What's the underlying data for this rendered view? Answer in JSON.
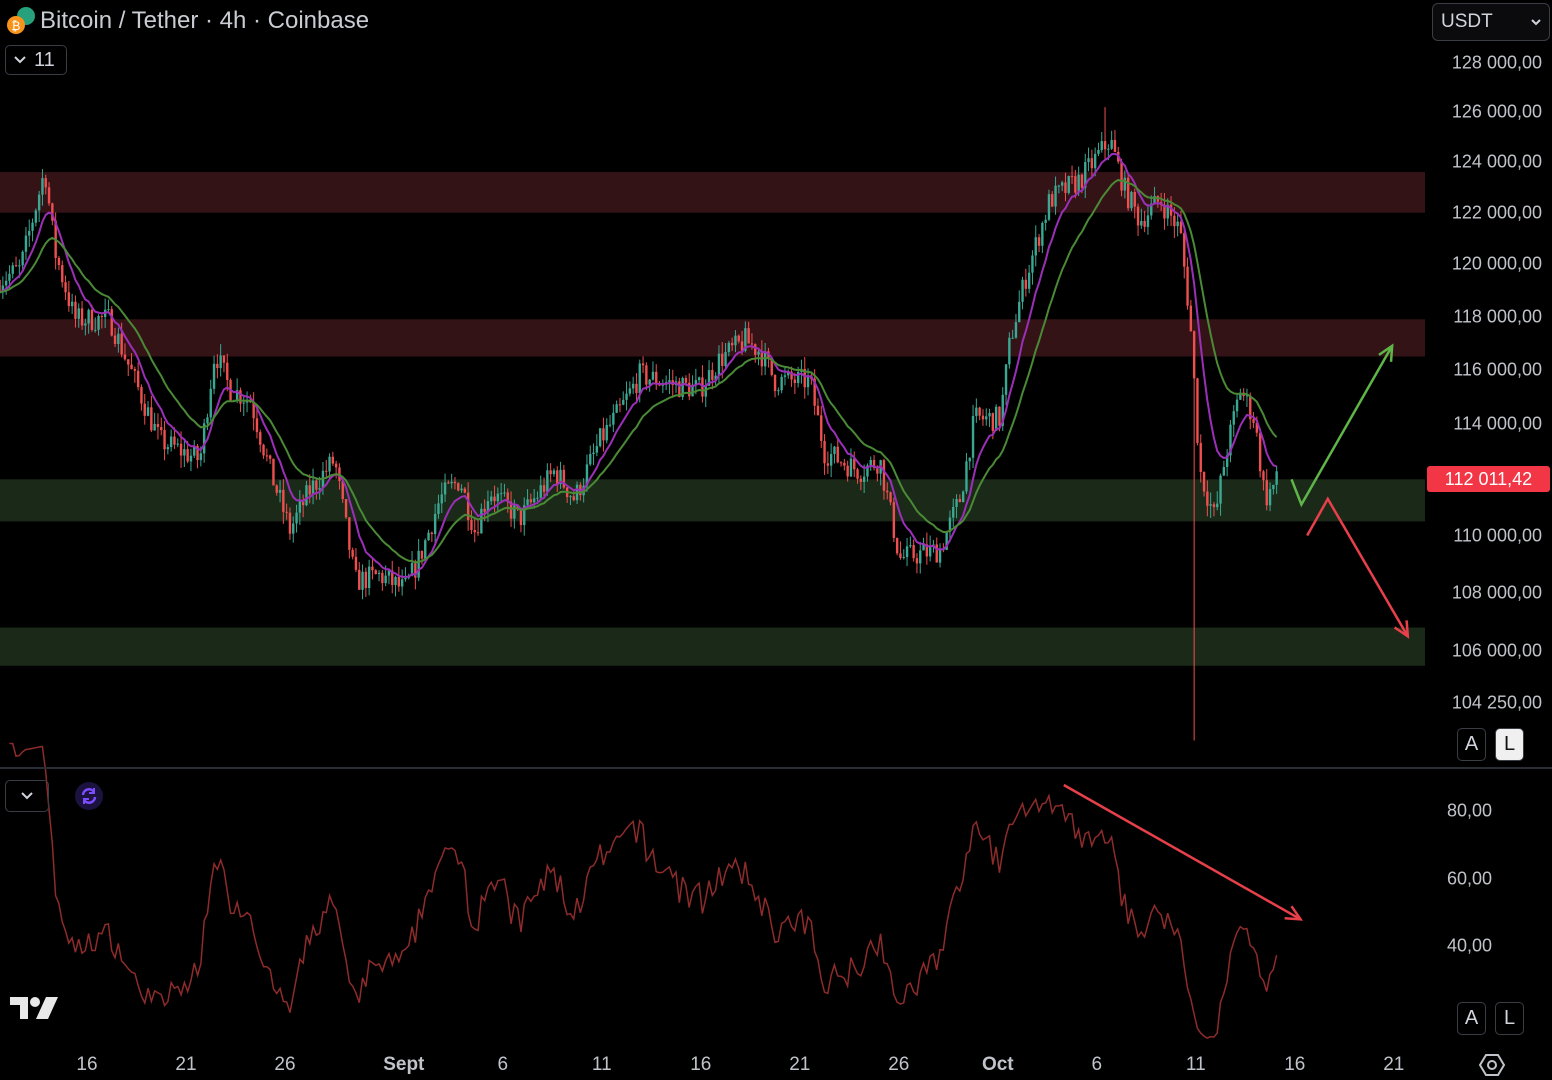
{
  "header": {
    "title": "Bitcoin / Tether · 4h · Coinbase",
    "legend_count": "11",
    "currency": "USDT",
    "coin_icon": "btc-usdt-icon"
  },
  "colors": {
    "up": "#3aa893",
    "down": "#ef4f4f",
    "ma_fast": "#9b2fb8",
    "ma_slow": "#4a8a36",
    "resistance_zone": "#341317",
    "support_zone": "#1b2a18",
    "rsi": "#8e2b2b",
    "price_tag": "#f23645",
    "arrow_up": "#5fb548",
    "arrow_down": "#e8404a",
    "rsi_arrow": "#e8404a"
  },
  "price_axis": {
    "scale": "log",
    "labels": [
      {
        "v": 128000,
        "t": "128 000,00"
      },
      {
        "v": 126000,
        "t": "126 000,00"
      },
      {
        "v": 124000,
        "t": "124 000,00"
      },
      {
        "v": 122000,
        "t": "122 000,00"
      },
      {
        "v": 120000,
        "t": "120 000,00"
      },
      {
        "v": 118000,
        "t": "118 000,00"
      },
      {
        "v": 116000,
        "t": "116 000,00"
      },
      {
        "v": 114000,
        "t": "114 000,00"
      },
      {
        "v": 110000,
        "t": "110 000,00"
      },
      {
        "v": 108000,
        "t": "108 000,00"
      },
      {
        "v": 106000,
        "t": "106 000,00"
      },
      {
        "v": 104250,
        "t": "104 250,00"
      }
    ],
    "current_price": 112011.42,
    "current_label": "112 011,42",
    "auto": "A",
    "log": "L",
    "log_active": true
  },
  "rsi_axis": {
    "labels": [
      {
        "v": 80,
        "t": "80,00"
      },
      {
        "v": 60,
        "t": "60,00"
      },
      {
        "v": 40,
        "t": "40,00"
      }
    ],
    "auto": "A",
    "log": "L"
  },
  "time_axis": [
    {
      "d": "Aug 16",
      "t": "16"
    },
    {
      "d": "Aug 21",
      "t": "21"
    },
    {
      "d": "Aug 26",
      "t": "26"
    },
    {
      "d": "Sep 1",
      "t": "Sept",
      "bold": true
    },
    {
      "d": "Sep 6",
      "t": "6"
    },
    {
      "d": "Sep 11",
      "t": "11"
    },
    {
      "d": "Sep 16",
      "t": "16"
    },
    {
      "d": "Sep 21",
      "t": "21"
    },
    {
      "d": "Sep 26",
      "t": "26"
    },
    {
      "d": "Oct 1",
      "t": "Oct",
      "bold": true
    },
    {
      "d": "Oct 6",
      "t": "6"
    },
    {
      "d": "Oct 11",
      "t": "11"
    },
    {
      "d": "Oct 16",
      "t": "16"
    },
    {
      "d": "Oct 21",
      "t": "21"
    }
  ],
  "chart_data": {
    "type": "candlestick",
    "interval": "4h",
    "yscale": "log",
    "ylim": [
      103000,
      129500
    ],
    "price_path": [
      [
        "Aug 11 14:00",
        119400
      ],
      [
        "Aug 12 15:00",
        119800
      ],
      [
        "Aug 13 21:00",
        123700
      ],
      [
        "Aug 14 09:00",
        120500
      ],
      [
        "Aug 15 09:00",
        117900
      ],
      [
        "Aug 17 04:00",
        117900
      ],
      [
        "Aug 18 10:00",
        115600
      ],
      [
        "Aug 19 16:00",
        113400
      ],
      [
        "Aug 21 17:00",
        112700
      ],
      [
        "Aug 22 11:00",
        116700
      ],
      [
        "Aug 23 05:00",
        115300
      ],
      [
        "Aug 24 06:00",
        114900
      ],
      [
        "Aug 25 06:00",
        112300
      ],
      [
        "Aug 26 06:00",
        110200
      ],
      [
        "Aug 27 06:00",
        111600
      ],
      [
        "Aug 28 12:00",
        112700
      ],
      [
        "Aug 29 13:00",
        108400
      ],
      [
        "Aug 30 19:00",
        108600
      ],
      [
        "Sep 1 01:00",
        108100
      ],
      [
        "Sep 1 19:00",
        109200
      ],
      [
        "Sep 2 20:00",
        111300
      ],
      [
        "Sep 3 20:00",
        112000
      ],
      [
        "Sep 4 14:00",
        110200
      ],
      [
        "Sep 5 08:00",
        111600
      ],
      [
        "Sep 6 21:00",
        110600
      ],
      [
        "Sep 8 15:00",
        112300
      ],
      [
        "Sep 9 15:00",
        111300
      ],
      [
        "Sep 10 22:00",
        113400
      ],
      [
        "Sep 11 22:00",
        114500
      ],
      [
        "Sep 12 22:00",
        115800
      ],
      [
        "Sep 14 23:00",
        115400
      ],
      [
        "Sep 15 23:00",
        115300
      ],
      [
        "Sep 16 23:00",
        116400
      ],
      [
        "Sep 18 06:00",
        117100
      ],
      [
        "Sep 19 00:00",
        116700
      ],
      [
        "Sep 19 18:00",
        115600
      ],
      [
        "Sep 21 12:00",
        115600
      ],
      [
        "Sep 22 06:00",
        113000
      ],
      [
        "Sep 24 01:00",
        112300
      ],
      [
        "Sep 25 01:00",
        112700
      ],
      [
        "Sep 26 01:00",
        109200
      ],
      [
        "Sep 28 02:00",
        109500
      ],
      [
        "Sep 29 02:00",
        111300
      ],
      [
        "Sep 29 20:00",
        114200
      ],
      [
        "Oct 1 03:00",
        114200
      ],
      [
        "Oct 1 15:00",
        117100
      ],
      [
        "Oct 2 09:00",
        119400
      ],
      [
        "Oct 3 15:00",
        122500
      ],
      [
        "Oct 5 04:00",
        123300
      ],
      [
        "Oct 6 16:00",
        124900
      ],
      [
        "Oct 7 10:00",
        122900
      ],
      [
        "Oct 8 04:00",
        121700
      ],
      [
        "Oct 9 05:00",
        122500
      ],
      [
        "Oct 10 05:00",
        121300
      ],
      [
        "Oct 10 17:00",
        117900
      ],
      [
        "Oct 11 05:00",
        112300
      ],
      [
        "Oct 11 23:00",
        110600
      ],
      [
        "Oct 12 11:00",
        112700
      ],
      [
        "Oct 13 06:00",
        115300
      ],
      [
        "Oct 13 23:00",
        114200
      ],
      [
        "Oct 14 12:00",
        111300
      ],
      [
        "Oct 15 04:00",
        112011.42
      ]
    ],
    "extremes": {
      "high": [
        "Oct 6 08:00",
        126200
      ],
      "wick_low": [
        "Oct 10 20:00",
        103000
      ]
    },
    "moving_averages": [
      {
        "color": "ma_fast",
        "period": 9
      },
      {
        "color": "ma_slow",
        "period": 21
      }
    ],
    "zones": [
      {
        "kind": "resistance",
        "from": 122000,
        "to": 123600
      },
      {
        "kind": "resistance",
        "from": 116500,
        "to": 117900
      },
      {
        "kind": "support",
        "from": 110500,
        "to": 112000
      },
      {
        "kind": "support",
        "from": 105500,
        "to": 106800
      }
    ],
    "drawings": [
      {
        "kind": "arrow",
        "color": "arrow_up",
        "points": [
          [
            "Oct 15 20:00",
            112000
          ],
          [
            "Oct 16 08:00",
            111100
          ],
          [
            "Oct 20 22:00",
            116900
          ]
        ]
      },
      {
        "kind": "arrow",
        "color": "arrow_down",
        "points": [
          [
            "Oct 16 15:00",
            110000
          ],
          [
            "Oct 17 16:00",
            111300
          ],
          [
            "Oct 21 17:00",
            106500
          ]
        ]
      },
      {
        "kind": "rsi_arrow",
        "color": "rsi_arrow",
        "points": [
          [
            "Oct 4 08:00",
            87.7
          ],
          [
            "Oct 16 07:00",
            47.9
          ]
        ]
      }
    ],
    "rsi": {
      "period": 14,
      "ylim": [
        30,
        90
      ]
    }
  }
}
